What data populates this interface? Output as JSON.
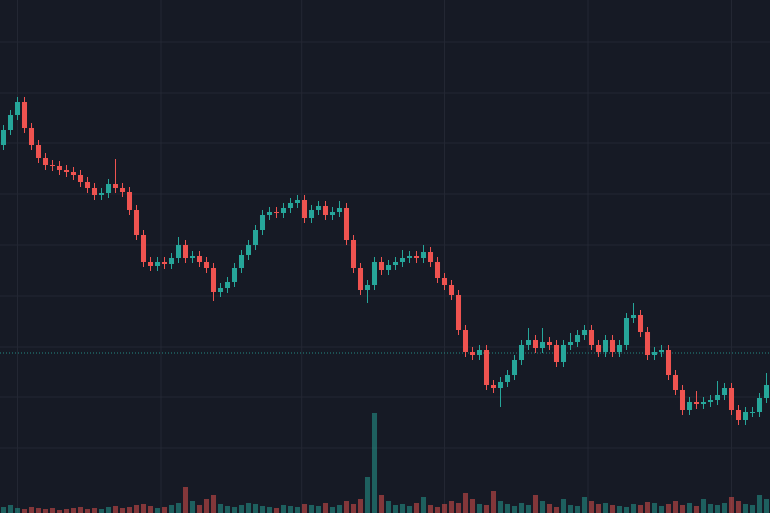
{
  "chart_data": {
    "type": "candlestick",
    "up_color": "#26a69a",
    "down_color": "#ef5350",
    "grid": true,
    "xlim": [
      -0.5,
      109.5
    ],
    "ylim": [
      0,
      513
    ],
    "xticks": [
      2,
      22.5,
      42.6,
      63,
      83.5,
      104
    ],
    "yticks": [
      65,
      116,
      166,
      217,
      268,
      319,
      370,
      420,
      471
    ],
    "price_line": 160,
    "open": [
      368,
      383,
      398,
      411,
      385,
      368,
      355,
      348,
      347,
      343,
      341,
      338,
      331,
      325,
      318,
      320,
      329,
      325,
      321,
      303,
      278,
      251,
      247,
      251,
      249,
      255,
      268,
      255,
      257,
      251,
      245,
      221,
      225,
      231,
      245,
      258,
      268,
      283,
      298,
      301,
      300,
      305,
      310,
      313,
      295,
      303,
      307,
      298,
      301,
      305,
      273,
      245,
      223,
      228,
      251,
      243,
      248,
      251,
      255,
      257,
      255,
      261,
      251,
      235,
      228,
      218,
      183,
      161,
      158,
      163,
      128,
      125,
      131,
      138,
      153,
      168,
      173,
      165,
      171,
      168,
      151,
      168,
      171,
      178,
      183,
      168,
      161,
      173,
      161,
      168,
      195,
      198,
      181,
      158,
      161,
      163,
      138,
      123,
      103,
      111,
      109,
      111,
      113,
      118,
      125,
      103,
      93,
      101,
      101,
      115
    ],
    "high": [
      388,
      403,
      416,
      416,
      390,
      373,
      360,
      353,
      352,
      348,
      346,
      343,
      336,
      330,
      325,
      334,
      354,
      330,
      326,
      308,
      283,
      256,
      256,
      256,
      260,
      276,
      273,
      262,
      262,
      256,
      250,
      230,
      236,
      250,
      263,
      273,
      288,
      303,
      306,
      306,
      310,
      315,
      318,
      318,
      308,
      312,
      312,
      306,
      312,
      310,
      278,
      250,
      233,
      256,
      256,
      253,
      256,
      263,
      262,
      262,
      268,
      266,
      256,
      240,
      233,
      223,
      188,
      166,
      168,
      168,
      133,
      136,
      143,
      158,
      173,
      185,
      178,
      185,
      176,
      173,
      173,
      180,
      183,
      188,
      188,
      173,
      178,
      178,
      173,
      200,
      210,
      203,
      186,
      166,
      168,
      168,
      143,
      128,
      116,
      122,
      116,
      118,
      132,
      130,
      130,
      108,
      106,
      106,
      120,
      140
    ],
    "low": [
      363,
      378,
      393,
      380,
      363,
      350,
      343,
      342,
      338,
      336,
      333,
      326,
      320,
      313,
      313,
      315,
      320,
      316,
      298,
      273,
      246,
      242,
      242,
      244,
      244,
      250,
      250,
      250,
      246,
      240,
      212,
      216,
      220,
      226,
      240,
      253,
      263,
      278,
      293,
      295,
      295,
      300,
      305,
      290,
      290,
      298,
      293,
      293,
      296,
      268,
      240,
      218,
      210,
      223,
      238,
      238,
      243,
      246,
      250,
      250,
      250,
      246,
      230,
      223,
      213,
      178,
      156,
      153,
      153,
      123,
      120,
      106,
      126,
      133,
      148,
      163,
      160,
      160,
      163,
      146,
      146,
      163,
      166,
      173,
      163,
      156,
      156,
      156,
      156,
      163,
      190,
      176,
      153,
      153,
      156,
      133,
      118,
      98,
      98,
      104,
      104,
      106,
      108,
      113,
      98,
      88,
      88,
      96,
      96,
      110
    ],
    "close": [
      383,
      398,
      411,
      385,
      368,
      355,
      348,
      347,
      343,
      341,
      338,
      331,
      325,
      318,
      320,
      329,
      325,
      321,
      303,
      278,
      251,
      247,
      251,
      249,
      255,
      268,
      255,
      257,
      251,
      245,
      221,
      225,
      231,
      245,
      258,
      268,
      283,
      298,
      301,
      300,
      305,
      310,
      313,
      295,
      303,
      307,
      298,
      301,
      305,
      273,
      245,
      223,
      228,
      251,
      243,
      248,
      251,
      255,
      257,
      255,
      261,
      251,
      235,
      228,
      218,
      183,
      161,
      158,
      163,
      128,
      125,
      131,
      138,
      153,
      168,
      173,
      165,
      171,
      168,
      151,
      168,
      171,
      178,
      183,
      168,
      161,
      173,
      161,
      168,
      195,
      198,
      181,
      158,
      161,
      163,
      138,
      123,
      103,
      111,
      109,
      111,
      113,
      118,
      125,
      103,
      93,
      101,
      101,
      115,
      128
    ],
    "volume": [
      6,
      8,
      5,
      4,
      6,
      5,
      4,
      5,
      3,
      4,
      5,
      6,
      4,
      5,
      4,
      6,
      7,
      5,
      6,
      8,
      9,
      7,
      5,
      6,
      8,
      10,
      26,
      12,
      8,
      14,
      18,
      9,
      7,
      6,
      8,
      10,
      9,
      7,
      6,
      5,
      8,
      7,
      6,
      9,
      8,
      7,
      10,
      6,
      8,
      12,
      9,
      14,
      36,
      100,
      18,
      12,
      8,
      9,
      7,
      10,
      16,
      8,
      6,
      9,
      12,
      10,
      20,
      14,
      9,
      8,
      22,
      12,
      9,
      7,
      10,
      8,
      18,
      12,
      9,
      6,
      14,
      8,
      7,
      16,
      12,
      9,
      10,
      8,
      7,
      6,
      9,
      8,
      11,
      10,
      7,
      9,
      12,
      8,
      10,
      7,
      14,
      9,
      8,
      10,
      16,
      12,
      9,
      8,
      18,
      14
    ]
  }
}
